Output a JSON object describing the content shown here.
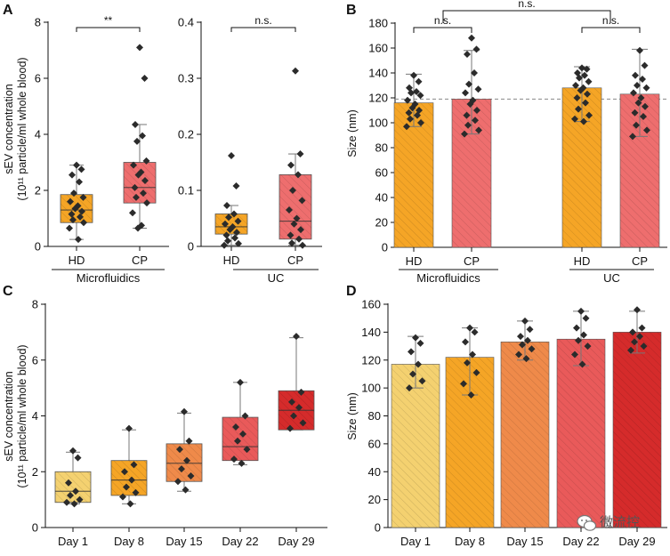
{
  "figure": {
    "watermark_text": "微流控",
    "watermark_icon": "wechat-icon"
  },
  "chart_data": [
    {
      "id": "A",
      "panel_label": "A",
      "type": "box",
      "ylabel_line1": "sEV concentration",
      "ylabel_line2": "(10¹¹ particle/ml whole blood)",
      "subpanels": [
        {
          "group_label": "Microfluidics",
          "ylim": [
            0,
            8
          ],
          "yticks": [
            0,
            2,
            4,
            6,
            8
          ],
          "ytick_labels": [
            "0",
            "2",
            "4",
            "6",
            "8"
          ],
          "significance": "**",
          "categories": [
            {
              "name": "HD",
              "color": "#F5A526",
              "box": {
                "q1": 0.85,
                "q3": 1.85,
                "median": 1.3,
                "whisker_low": 0.25,
                "whisker_high": 2.9
              },
              "points": [
                2.9,
                2.75,
                2.55,
                2.3,
                1.9,
                1.75,
                1.6,
                1.45,
                1.35,
                1.25,
                1.15,
                1.05,
                0.95,
                0.85,
                0.65,
                0.25
              ]
            },
            {
              "name": "CP",
              "color": "#EE6E6E",
              "box": {
                "q1": 1.55,
                "q3": 3.0,
                "median": 2.1,
                "whisker_low": 0.65,
                "whisker_high": 4.35
              },
              "points": [
                7.1,
                6.0,
                4.35,
                3.95,
                3.75,
                3.05,
                2.9,
                2.65,
                2.55,
                2.35,
                2.1,
                1.9,
                1.75,
                1.55,
                1.2,
                0.75,
                0.65
              ]
            }
          ]
        },
        {
          "group_label": "UC",
          "ylim": [
            0,
            0.4
          ],
          "yticks": [
            0,
            0.1,
            0.2,
            0.3,
            0.4
          ],
          "ytick_labels": [
            "0",
            "0.1",
            "0.2",
            "0.3",
            "0.4"
          ],
          "significance": "n.s.",
          "categories": [
            {
              "name": "HD",
              "color": "#F5A526",
              "box": {
                "q1": 0.022,
                "q3": 0.058,
                "median": 0.035,
                "whisker_low": 0.002,
                "whisker_high": 0.073
              },
              "points": [
                0.162,
                0.108,
                0.073,
                0.058,
                0.052,
                0.045,
                0.04,
                0.035,
                0.03,
                0.025,
                0.02,
                0.015,
                0.01,
                0.005,
                0.002
              ]
            },
            {
              "name": "CP",
              "color": "#EE6E6E",
              "box": {
                "q1": 0.013,
                "q3": 0.128,
                "median": 0.045,
                "whisker_low": 0.002,
                "whisker_high": 0.165
              },
              "points": [
                0.313,
                0.165,
                0.145,
                0.128,
                0.1,
                0.082,
                0.065,
                0.05,
                0.04,
                0.03,
                0.02,
                0.013,
                0.006,
                0.002
              ]
            }
          ]
        }
      ]
    },
    {
      "id": "B",
      "panel_label": "B",
      "type": "bar",
      "ylabel": "Size (nm)",
      "ylim": [
        0,
        180
      ],
      "yticks": [
        0,
        20,
        40,
        60,
        80,
        100,
        120,
        140,
        160,
        180
      ],
      "reference_line": 119,
      "group_labels": [
        "Microfluidics",
        "UC"
      ],
      "significance": {
        "HD_vs_CP_microfluidics": "n.s.",
        "HD_vs_CP_uc": "n.s.",
        "microfluidics_vs_uc": "n.s."
      },
      "categories": [
        {
          "name": "HD",
          "group": "Microfluidics",
          "color": "#F5A526",
          "value": 116,
          "err_low": 97,
          "err_high": 139,
          "points": [
            138,
            133,
            128,
            125,
            124,
            122,
            118,
            115,
            112,
            110,
            108,
            106,
            103,
            100,
            97
          ]
        },
        {
          "name": "CP",
          "group": "Microfluidics",
          "color": "#EE6E6E",
          "value": 119,
          "err_low": 91,
          "err_high": 158,
          "points": [
            168,
            159,
            155,
            140,
            131,
            127,
            124,
            118,
            115,
            110,
            106,
            102,
            98,
            94,
            91
          ]
        },
        {
          "name": "HD",
          "group": "UC",
          "color": "#F5A526",
          "value": 128,
          "err_low": 101,
          "err_high": 145,
          "points": [
            144,
            143,
            140,
            138,
            136,
            133,
            130,
            128,
            126,
            123,
            120,
            116,
            111,
            106,
            103,
            101
          ]
        },
        {
          "name": "CP",
          "group": "UC",
          "color": "#EE6E6E",
          "value": 123,
          "err_low": 89,
          "err_high": 159,
          "points": [
            158,
            146,
            138,
            135,
            130,
            128,
            124,
            120,
            116,
            113,
            108,
            105,
            98,
            94,
            89
          ]
        }
      ]
    },
    {
      "id": "C",
      "panel_label": "C",
      "type": "box",
      "ylabel_line1": "sEV concentration",
      "ylabel_line2": "(10¹¹ particle/ml whole blood)",
      "ylim": [
        0,
        8
      ],
      "yticks": [
        0,
        2,
        4,
        6,
        8
      ],
      "ytick_labels": [
        "0",
        "2",
        "4",
        "6",
        "8"
      ],
      "categories": [
        {
          "name": "Day 1",
          "color": "#F4D170",
          "box": {
            "q1": 0.9,
            "q3": 2.0,
            "median": 1.3,
            "whisker_low": 0.85,
            "whisker_high": 2.7
          },
          "points": [
            2.75,
            2.5,
            1.6,
            1.3,
            1.15,
            1.0,
            0.9,
            0.85
          ]
        },
        {
          "name": "Day 8",
          "color": "#F5A526",
          "box": {
            "q1": 1.15,
            "q3": 2.4,
            "median": 1.7,
            "whisker_low": 0.85,
            "whisker_high": 3.5
          },
          "points": [
            3.55,
            2.25,
            2.0,
            1.7,
            1.45,
            1.25,
            1.1,
            0.85
          ]
        },
        {
          "name": "Day 15",
          "color": "#EF8A4A",
          "box": {
            "q1": 1.65,
            "q3": 3.0,
            "median": 2.3,
            "whisker_low": 1.3,
            "whisker_high": 4.1
          },
          "points": [
            4.15,
            3.1,
            2.8,
            2.4,
            2.1,
            1.85,
            1.65,
            1.35
          ]
        },
        {
          "name": "Day 22",
          "color": "#E95A5A",
          "box": {
            "q1": 2.4,
            "q3": 3.95,
            "median": 2.9,
            "whisker_low": 2.25,
            "whisker_high": 5.2
          },
          "points": [
            5.2,
            4.0,
            3.6,
            3.35,
            3.1,
            2.8,
            2.45,
            2.3
          ]
        },
        {
          "name": "Day 29",
          "color": "#D52B2B",
          "box": {
            "q1": 3.5,
            "q3": 4.9,
            "median": 4.2,
            "whisker_low": 3.5,
            "whisker_high": 6.8
          },
          "points": [
            6.85,
            4.85,
            4.5,
            4.3,
            4.0,
            3.75,
            3.55
          ]
        }
      ]
    },
    {
      "id": "D",
      "panel_label": "D",
      "type": "bar",
      "ylabel": "Size (nm)",
      "ylim": [
        0,
        160
      ],
      "yticks": [
        0,
        20,
        40,
        60,
        80,
        100,
        120,
        140,
        160
      ],
      "categories": [
        {
          "name": "Day 1",
          "color": "#F4D170",
          "value": 117,
          "err_low": 100,
          "err_high": 137,
          "points": [
            136,
            132,
            126,
            117,
            110,
            105,
            100
          ]
        },
        {
          "name": "Day 8",
          "color": "#F5A526",
          "value": 122,
          "err_low": 95,
          "err_high": 143,
          "points": [
            143,
            140,
            133,
            124,
            118,
            111,
            103,
            95
          ]
        },
        {
          "name": "Day 15",
          "color": "#EF8A4A",
          "value": 133,
          "err_low": 120,
          "err_high": 148,
          "points": [
            148,
            142,
            137,
            134,
            131,
            128,
            124,
            121
          ]
        },
        {
          "name": "Day 22",
          "color": "#E95A5A",
          "value": 135,
          "err_low": 116,
          "err_high": 155,
          "points": [
            155,
            150,
            143,
            138,
            134,
            130,
            124,
            117
          ]
        },
        {
          "name": "Day 29",
          "color": "#D52B2B",
          "value": 140,
          "err_low": 125,
          "err_high": 155,
          "points": [
            156,
            143,
            140,
            137,
            133,
            130,
            127
          ]
        }
      ]
    }
  ]
}
